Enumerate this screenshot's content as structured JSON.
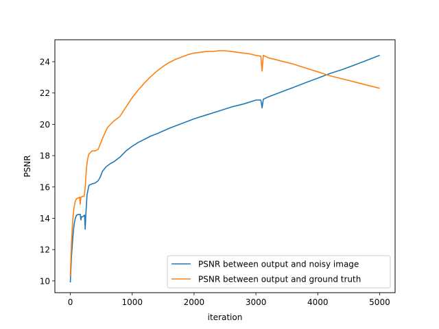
{
  "chart_data": {
    "type": "line",
    "title": "",
    "xlabel": "iteration",
    "ylabel": "PSNR",
    "xlim": [
      -250,
      5250
    ],
    "ylim": [
      9.25,
      25.4
    ],
    "xticks": [
      0,
      1000,
      2000,
      3000,
      4000,
      5000
    ],
    "yticks": [
      10,
      12,
      14,
      16,
      18,
      20,
      22,
      24
    ],
    "grid": false,
    "legend_position": "lower-right",
    "series": [
      {
        "name": "PSNR between output and noisy image",
        "color": "#1f77b4",
        "x": [
          0,
          20,
          40,
          60,
          80,
          100,
          130,
          160,
          170,
          180,
          200,
          230,
          240,
          250,
          270,
          300,
          350,
          400,
          450,
          480,
          520,
          580,
          650,
          700,
          800,
          900,
          1000,
          1100,
          1200,
          1300,
          1400,
          1600,
          1800,
          2000,
          2200,
          2400,
          2600,
          2800,
          3000,
          3080,
          3100,
          3120,
          3200,
          3400,
          3600,
          3800,
          4000,
          4200,
          4400,
          4600,
          4800,
          5000
        ],
        "y": [
          9.9,
          11.6,
          12.8,
          13.6,
          14.0,
          14.2,
          14.25,
          14.25,
          13.9,
          14.1,
          14.1,
          14.2,
          13.3,
          14.2,
          15.5,
          16.1,
          16.2,
          16.25,
          16.4,
          16.6,
          17.0,
          17.3,
          17.5,
          17.6,
          17.9,
          18.3,
          18.6,
          18.85,
          19.05,
          19.25,
          19.4,
          19.75,
          20.05,
          20.35,
          20.6,
          20.85,
          21.1,
          21.3,
          21.55,
          21.55,
          21.05,
          21.6,
          21.75,
          22.05,
          22.35,
          22.65,
          22.95,
          23.25,
          23.5,
          23.8,
          24.1,
          24.4
        ]
      },
      {
        "name": "PSNR between output and ground truth",
        "color": "#ff7f0e",
        "x": [
          0,
          20,
          40,
          60,
          80,
          100,
          130,
          150,
          160,
          170,
          200,
          220,
          230,
          240,
          260,
          280,
          300,
          350,
          400,
          450,
          480,
          520,
          600,
          700,
          800,
          900,
          1000,
          1100,
          1200,
          1300,
          1400,
          1500,
          1600,
          1700,
          1800,
          1900,
          2000,
          2100,
          2200,
          2300,
          2400,
          2500,
          2600,
          2700,
          2800,
          2900,
          3000,
          3080,
          3100,
          3120,
          3200,
          3400,
          3600,
          3800,
          4000,
          4200,
          4400,
          4600,
          4800,
          5000
        ],
        "y": [
          10.3,
          12.5,
          14.0,
          14.7,
          15.1,
          15.25,
          15.3,
          15.35,
          14.9,
          15.35,
          15.4,
          15.4,
          15.6,
          16.0,
          17.2,
          17.8,
          18.1,
          18.3,
          18.3,
          18.4,
          18.7,
          19.1,
          19.8,
          20.2,
          20.5,
          21.1,
          21.7,
          22.2,
          22.65,
          23.05,
          23.4,
          23.7,
          23.95,
          24.15,
          24.3,
          24.45,
          24.55,
          24.6,
          24.65,
          24.65,
          24.7,
          24.7,
          24.65,
          24.6,
          24.55,
          24.5,
          24.4,
          24.35,
          23.4,
          24.4,
          24.25,
          24.05,
          23.85,
          23.6,
          23.35,
          23.1,
          22.9,
          22.7,
          22.5,
          22.3
        ]
      }
    ]
  }
}
